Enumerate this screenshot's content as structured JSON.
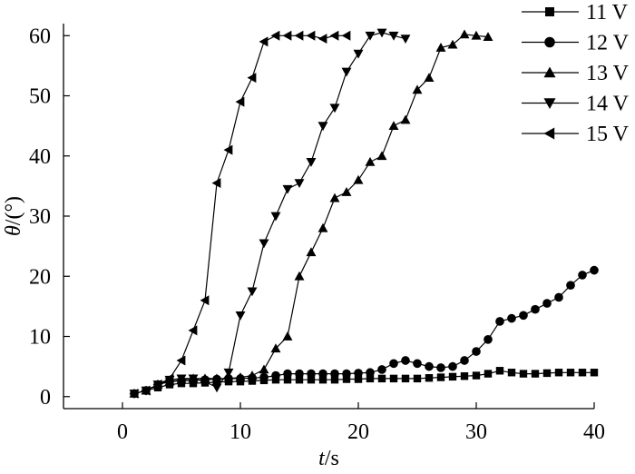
{
  "chart_data": {
    "type": "line",
    "title": "",
    "xlabel": {
      "italic": "t",
      "rest": "/s"
    },
    "ylabel": {
      "italic": "θ",
      "rest": "/(°)"
    },
    "xlim": [
      -5,
      40
    ],
    "ylim": [
      -2,
      62
    ],
    "x_ticks": [
      0,
      10,
      20,
      30,
      40
    ],
    "y_ticks": [
      0,
      10,
      20,
      30,
      40,
      50,
      60
    ],
    "grid": false,
    "legend_position": "top-right",
    "line_color": "#000000",
    "series": [
      {
        "name": "11 V",
        "marker": "square",
        "points": [
          [
            1,
            0.5
          ],
          [
            2,
            1
          ],
          [
            3,
            1.5
          ],
          [
            4,
            2
          ],
          [
            5,
            2.2
          ],
          [
            6,
            2.2
          ],
          [
            7,
            2.3
          ],
          [
            8,
            2.4
          ],
          [
            9,
            2.5
          ],
          [
            10,
            2.5
          ],
          [
            11,
            2.6
          ],
          [
            12,
            2.7
          ],
          [
            13,
            2.8
          ],
          [
            14,
            2.8
          ],
          [
            15,
            2.8
          ],
          [
            16,
            2.8
          ],
          [
            17,
            2.8
          ],
          [
            18,
            2.8
          ],
          [
            19,
            2.9
          ],
          [
            20,
            2.9
          ],
          [
            21,
            3
          ],
          [
            22,
            3
          ],
          [
            23,
            3
          ],
          [
            24,
            3
          ],
          [
            25,
            3
          ],
          [
            26,
            3.1
          ],
          [
            27,
            3.2
          ],
          [
            28,
            3.3
          ],
          [
            29,
            3.4
          ],
          [
            30,
            3.5
          ],
          [
            31,
            3.8
          ],
          [
            32,
            4.3
          ],
          [
            33,
            4
          ],
          [
            34,
            3.8
          ],
          [
            35,
            3.8
          ],
          [
            36,
            3.9
          ],
          [
            37,
            4
          ],
          [
            38,
            4
          ],
          [
            39,
            4
          ],
          [
            40,
            4
          ]
        ]
      },
      {
        "name": "12 V",
        "marker": "circle",
        "points": [
          [
            1,
            0.5
          ],
          [
            2,
            1
          ],
          [
            3,
            2
          ],
          [
            4,
            2.5
          ],
          [
            5,
            2.6
          ],
          [
            6,
            2.7
          ],
          [
            7,
            2.8
          ],
          [
            8,
            2.9
          ],
          [
            9,
            3
          ],
          [
            10,
            3
          ],
          [
            11,
            3.1
          ],
          [
            12,
            3.2
          ],
          [
            13,
            3.5
          ],
          [
            14,
            3.8
          ],
          [
            15,
            3.8
          ],
          [
            16,
            3.8
          ],
          [
            17,
            3.8
          ],
          [
            18,
            3.8
          ],
          [
            19,
            3.8
          ],
          [
            20,
            3.9
          ],
          [
            21,
            4
          ],
          [
            22,
            4.5
          ],
          [
            23,
            5.5
          ],
          [
            24,
            6
          ],
          [
            25,
            5.5
          ],
          [
            26,
            5
          ],
          [
            27,
            4.8
          ],
          [
            28,
            5
          ],
          [
            29,
            6
          ],
          [
            30,
            7.5
          ],
          [
            31,
            9.5
          ],
          [
            32,
            12.5
          ],
          [
            33,
            13
          ],
          [
            34,
            13.5
          ],
          [
            35,
            14.5
          ],
          [
            36,
            15.5
          ],
          [
            37,
            16.5
          ],
          [
            38,
            18.5
          ],
          [
            39,
            20.2
          ],
          [
            40,
            21
          ]
        ]
      },
      {
        "name": "13 V",
        "marker": "triangle-up",
        "points": [
          [
            1,
            0.5
          ],
          [
            2,
            1
          ],
          [
            3,
            2
          ],
          [
            4,
            2.5
          ],
          [
            5,
            2.8
          ],
          [
            6,
            3
          ],
          [
            7,
            3
          ],
          [
            8,
            3
          ],
          [
            9,
            3
          ],
          [
            10,
            3.2
          ],
          [
            11,
            3.5
          ],
          [
            12,
            4.5
          ],
          [
            13,
            8
          ],
          [
            14,
            10
          ],
          [
            15,
            20
          ],
          [
            16,
            24
          ],
          [
            17,
            28
          ],
          [
            18,
            33
          ],
          [
            19,
            34
          ],
          [
            20,
            36
          ],
          [
            21,
            39
          ],
          [
            22,
            40
          ],
          [
            23,
            45
          ],
          [
            24,
            46
          ],
          [
            25,
            51
          ],
          [
            26,
            53
          ],
          [
            27,
            58
          ],
          [
            28,
            58.5
          ],
          [
            29,
            60.2
          ],
          [
            30,
            60
          ],
          [
            31,
            59.8
          ]
        ]
      },
      {
        "name": "14 V",
        "marker": "triangle-down",
        "points": [
          [
            1,
            0.5
          ],
          [
            2,
            1
          ],
          [
            3,
            2
          ],
          [
            4,
            2.8
          ],
          [
            5,
            3
          ],
          [
            6,
            3
          ],
          [
            7,
            2.5
          ],
          [
            8,
            1.5
          ],
          [
            9,
            4
          ],
          [
            10,
            13.5
          ],
          [
            11,
            17.5
          ],
          [
            12,
            25.5
          ],
          [
            13,
            30
          ],
          [
            14,
            34.5
          ],
          [
            15,
            35.5
          ],
          [
            16,
            39
          ],
          [
            17,
            45
          ],
          [
            18,
            48
          ],
          [
            19,
            54
          ],
          [
            20,
            57
          ],
          [
            21,
            60
          ],
          [
            22,
            60.5
          ],
          [
            23,
            60
          ],
          [
            24,
            59.5
          ]
        ]
      },
      {
        "name": "15 V",
        "marker": "triangle-left",
        "points": [
          [
            1,
            0.5
          ],
          [
            2,
            1
          ],
          [
            3,
            2
          ],
          [
            4,
            3
          ],
          [
            5,
            6
          ],
          [
            6,
            11
          ],
          [
            7,
            16
          ],
          [
            8,
            35.5
          ],
          [
            9,
            41
          ],
          [
            10,
            49
          ],
          [
            11,
            53
          ],
          [
            12,
            59
          ],
          [
            13,
            60
          ],
          [
            14,
            60
          ],
          [
            15,
            60
          ],
          [
            16,
            60
          ],
          [
            17,
            59.5
          ],
          [
            18,
            60
          ],
          [
            19,
            60
          ]
        ]
      }
    ]
  }
}
